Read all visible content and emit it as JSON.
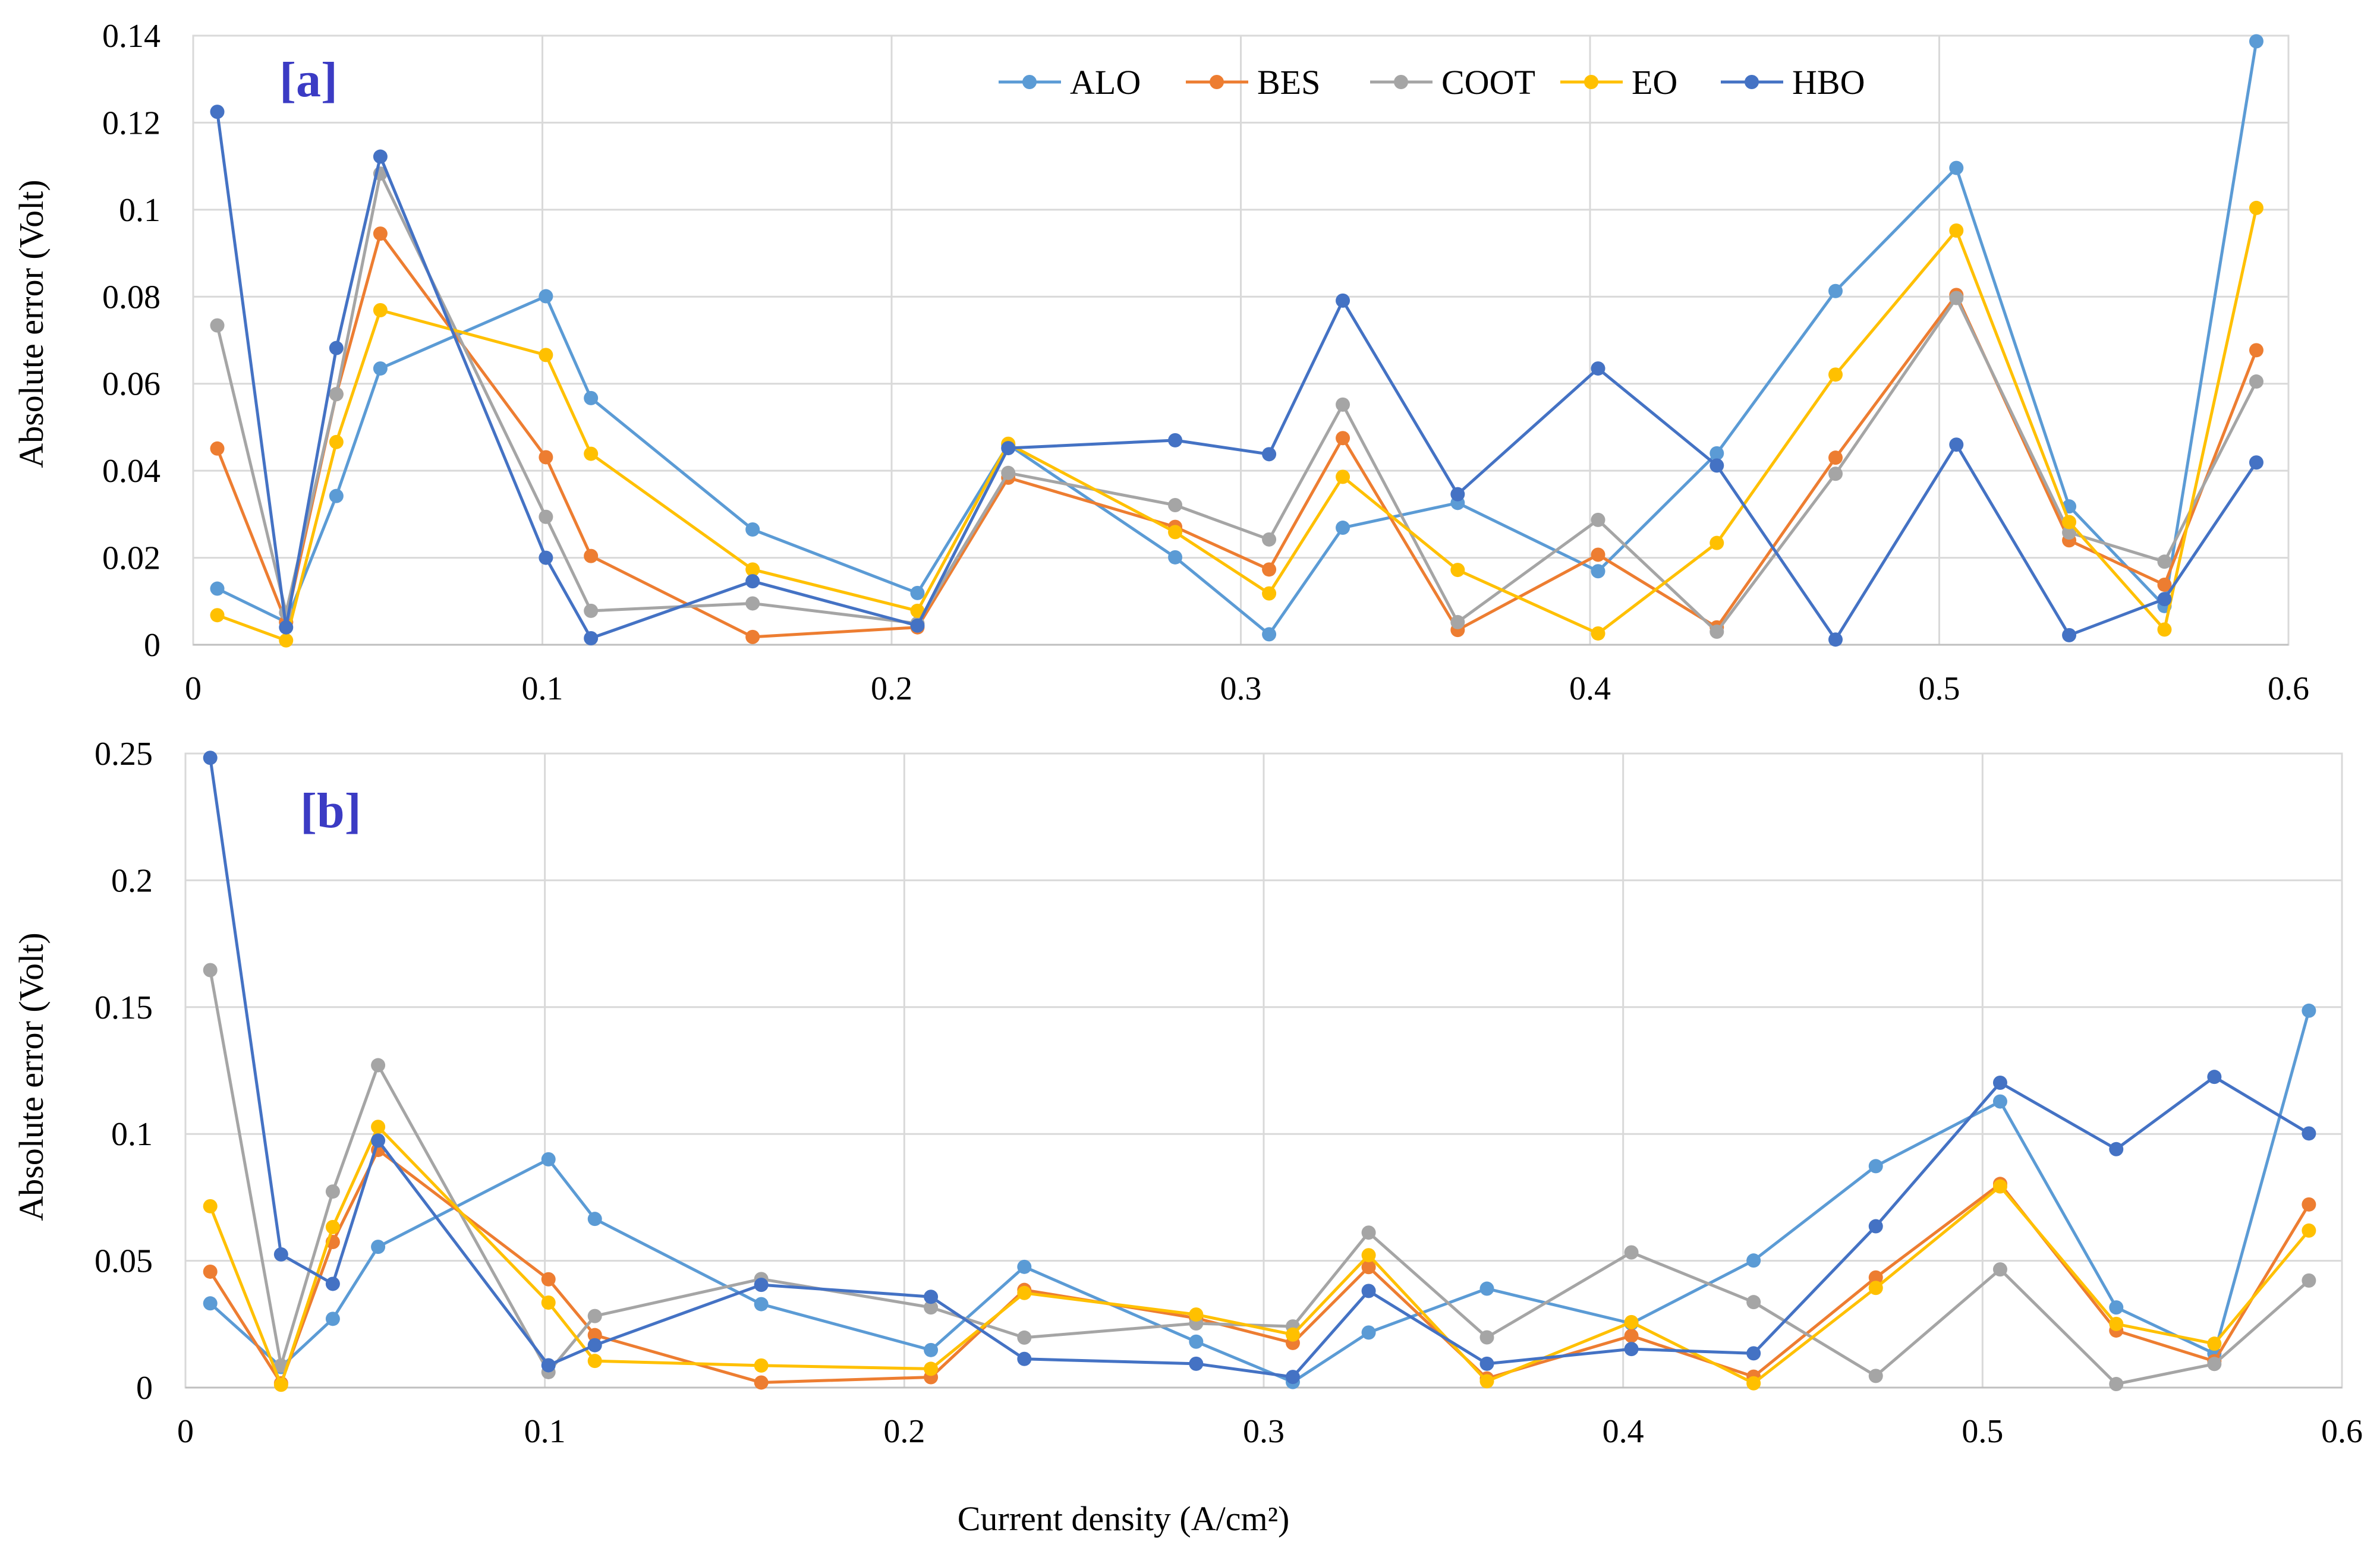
{
  "chart_data": [
    {
      "type": "line",
      "panel_label": "[a]",
      "title": "",
      "xlabel": "",
      "ylabel": "Absolute error (Volt)",
      "xlim": [
        0,
        0.6
      ],
      "ylim": [
        0,
        0.14
      ],
      "grid": true,
      "x_tick_labels": [
        "0",
        "0.1",
        "0.2",
        "0.3",
        "0.4",
        "0.5",
        "0.6"
      ],
      "y_tick_labels": [
        "0",
        "0.02",
        "0.04",
        "0.06",
        "0.08",
        "0.1",
        "0.12",
        "0.14"
      ],
      "legend_position": "top",
      "x": [
        0.0069,
        0.0266,
        0.041,
        0.0536,
        0.101,
        0.1139,
        0.1602,
        0.2074,
        0.2334,
        0.2812,
        0.3081,
        0.3292,
        0.3621,
        0.4023,
        0.4363,
        0.4703,
        0.5049,
        0.5372,
        0.5645,
        0.5908
      ],
      "series": [
        {
          "name": "ALO",
          "values": [
            0.0129,
            0.0052,
            0.0342,
            0.0635,
            0.0801,
            0.0567,
            0.0265,
            0.0119,
            0.046,
            0.0201,
            0.0024,
            0.0269,
            0.0326,
            0.0169,
            0.044,
            0.0813,
            0.1096,
            0.0318,
            0.0089,
            0.1387
          ]
        },
        {
          "name": "BES",
          "values": [
            0.0451,
            0.0052,
            0.0576,
            0.0945,
            0.0431,
            0.0204,
            0.0018,
            0.004,
            0.0384,
            0.0271,
            0.0173,
            0.0475,
            0.0034,
            0.0207,
            0.004,
            0.043,
            0.0804,
            0.024,
            0.0138,
            0.0677
          ]
        },
        {
          "name": "COOT",
          "values": [
            0.0734,
            0.0074,
            0.0576,
            0.1083,
            0.0294,
            0.0078,
            0.0095,
            0.0049,
            0.0395,
            0.0321,
            0.0242,
            0.0552,
            0.0052,
            0.0287,
            0.003,
            0.0393,
            0.0797,
            0.0258,
            0.0191,
            0.0605
          ]
        },
        {
          "name": "EO",
          "values": [
            0.0068,
            0.001,
            0.0466,
            0.0769,
            0.0666,
            0.0439,
            0.0173,
            0.0078,
            0.0462,
            0.0259,
            0.0118,
            0.0386,
            0.0172,
            0.0026,
            0.0234,
            0.0621,
            0.0952,
            0.0282,
            0.0035,
            0.1004
          ]
        },
        {
          "name": "HBO",
          "values": [
            0.1225,
            0.004,
            0.0682,
            0.1122,
            0.02,
            0.0015,
            0.0146,
            0.0044,
            0.0452,
            0.047,
            0.0438,
            0.0791,
            0.0346,
            0.0635,
            0.0412,
            0.0012,
            0.046,
            0.0022,
            0.0105,
            0.0419
          ]
        }
      ]
    },
    {
      "type": "line",
      "panel_label": "[b]",
      "title": "",
      "xlabel": "Current density (A/cm²)",
      "ylabel": "Absolute error (Volt)",
      "xlim": [
        0,
        0.6
      ],
      "ylim": [
        0,
        0.25
      ],
      "grid": true,
      "x_tick_labels": [
        "0",
        "0.1",
        "0.2",
        "0.3",
        "0.4",
        "0.5",
        "0.6"
      ],
      "y_tick_labels": [
        "0",
        "0.05",
        "0.1",
        "0.15",
        "0.2",
        "0.25"
      ],
      "legend_position": "shared with panel [a]",
      "x": [
        0.0069,
        0.0266,
        0.041,
        0.0536,
        0.101,
        0.1139,
        0.1602,
        0.2074,
        0.2334,
        0.2812,
        0.3081,
        0.3292,
        0.3621,
        0.4023,
        0.4363,
        0.4703,
        0.5049,
        0.5372,
        0.5645,
        0.5908
      ],
      "series": [
        {
          "name": "ALO",
          "values": [
            0.0332,
            0.0081,
            0.0271,
            0.0555,
            0.09,
            0.0665,
            0.0329,
            0.0148,
            0.0476,
            0.0181,
            0.0022,
            0.0217,
            0.039,
            0.0253,
            0.0501,
            0.0873,
            0.1128,
            0.0316,
            0.0134,
            0.1486
          ]
        },
        {
          "name": "BES",
          "values": [
            0.0457,
            0.0017,
            0.0574,
            0.0937,
            0.0427,
            0.0207,
            0.002,
            0.0041,
            0.0385,
            0.0274,
            0.0176,
            0.0475,
            0.0036,
            0.0204,
            0.0043,
            0.0434,
            0.0803,
            0.0225,
            0.0104,
            0.0722
          ]
        },
        {
          "name": "COOT",
          "values": [
            0.1646,
            0.0087,
            0.0773,
            0.1271,
            0.0061,
            0.0282,
            0.0428,
            0.0316,
            0.0197,
            0.0253,
            0.0241,
            0.0611,
            0.0198,
            0.0533,
            0.0337,
            0.0046,
            0.0466,
            0.0014,
            0.0093,
            0.0422
          ]
        },
        {
          "name": "EO",
          "values": [
            0.0715,
            0.0011,
            0.0633,
            0.1028,
            0.0335,
            0.0105,
            0.0087,
            0.0074,
            0.0373,
            0.0288,
            0.0209,
            0.0522,
            0.0025,
            0.0258,
            0.0017,
            0.0393,
            0.0793,
            0.0251,
            0.0173,
            0.0619
          ]
        },
        {
          "name": "HBO",
          "values": [
            0.2483,
            0.0525,
            0.0409,
            0.0974,
            0.0088,
            0.0167,
            0.0405,
            0.0358,
            0.0113,
            0.0094,
            0.0042,
            0.0381,
            0.0094,
            0.0152,
            0.0135,
            0.0636,
            0.1202,
            0.094,
            0.1225,
            0.1002
          ]
        }
      ]
    }
  ],
  "legend": {
    "entries": [
      "ALO",
      "BES",
      "COOT",
      "EO",
      "HBO"
    ]
  },
  "colors": {
    "ALO": "#5b9bd5",
    "BES": "#ed7d31",
    "COOT": "#a5a5a5",
    "EO": "#ffc000",
    "HBO": "#4472c4",
    "panel_tag": "#3b3bc4"
  }
}
